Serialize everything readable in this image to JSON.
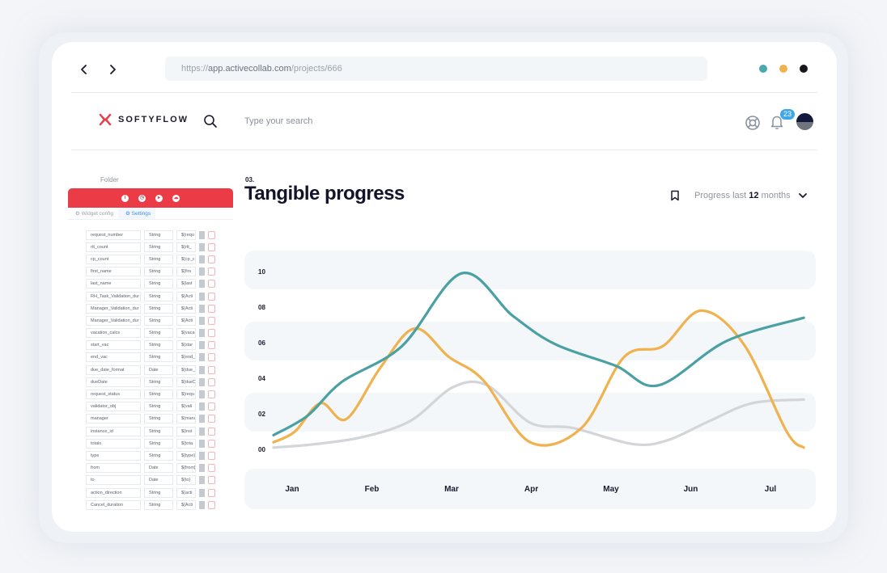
{
  "browser": {
    "back_icon": "chevron-left-icon",
    "forward_icon": "chevron-right-icon",
    "url_host": "https://",
    "url_domain": "app.activecollab.com",
    "url_path": "/projects/666",
    "dots": [
      "#4aa9ad",
      "#f0b24e",
      "#17181c"
    ]
  },
  "header": {
    "brand": "SOFTYFLOW",
    "brand_color": "#ea3b47",
    "search_placeholder": "Type your search",
    "notification_count": "23"
  },
  "panel": {
    "folder_label": "Folder",
    "tabs": [
      "Widget config",
      "Settings"
    ],
    "rows": [
      {
        "name": "request_number",
        "type": "String",
        "value": "${requ"
      },
      {
        "name": "rtt_count",
        "type": "String",
        "value": "${rtt_"
      },
      {
        "name": "cp_count",
        "type": "String",
        "value": "${cp_c"
      },
      {
        "name": "first_name",
        "type": "String",
        "value": "${firs"
      },
      {
        "name": "last_name",
        "type": "String",
        "value": "${last"
      },
      {
        "name": "RH_Task_Validation_dur",
        "type": "String",
        "value": "${Acti"
      },
      {
        "name": "Manager_Validation_dur",
        "type": "String",
        "value": "${Acti"
      },
      {
        "name": "Manager_Validation_dur",
        "type": "String",
        "value": "${Acti"
      },
      {
        "name": "vacation_calcs",
        "type": "String",
        "value": "${vaca"
      },
      {
        "name": "start_vac",
        "type": "String",
        "value": "${star"
      },
      {
        "name": "end_vac",
        "type": "String",
        "value": "${end_"
      },
      {
        "name": "due_date_format",
        "type": "Date",
        "value": "${due_"
      },
      {
        "name": "dueDate",
        "type": "String",
        "value": "${dueD"
      },
      {
        "name": "request_status",
        "type": "String",
        "value": "${requ"
      },
      {
        "name": "validator_obj",
        "type": "String",
        "value": "${vali"
      },
      {
        "name": "manager",
        "type": "String",
        "value": "${mana"
      },
      {
        "name": "instance_id",
        "type": "String",
        "value": "${inst"
      },
      {
        "name": "totals",
        "type": "String",
        "value": "${tota"
      },
      {
        "name": "type",
        "type": "String",
        "value": "${type}"
      },
      {
        "name": "from",
        "type": "Date",
        "value": "${from}"
      },
      {
        "name": "to",
        "type": "Date",
        "value": "${to}"
      },
      {
        "name": "action_direction",
        "type": "String",
        "value": "${acti"
      },
      {
        "name": "Cancel_duration",
        "type": "String",
        "value": "${Acti"
      }
    ]
  },
  "chart_header": {
    "number": "03.",
    "title": "Tangible progress",
    "progress_prefix": "Progress last",
    "progress_value": "12",
    "progress_suffix": "months"
  },
  "chart_data": {
    "type": "line",
    "categories": [
      "Jan",
      "Feb",
      "Mar",
      "Apr",
      "May",
      "Jun",
      "Jul"
    ],
    "y_ticks": [
      "00",
      "02",
      "04",
      "06",
      "08",
      "10"
    ],
    "ylim": [
      0,
      10
    ],
    "grid": "alternating horizontal bands",
    "series": [
      {
        "color": "#4aa0a2",
        "x": [
          0,
          0.4,
          0.8,
          1.5,
          2.2,
          2.8,
          3.3,
          4.0,
          4.5,
          5.3,
          6.2
        ],
        "values": [
          0.8,
          1.9,
          3.8,
          5.8,
          9.9,
          7.5,
          5.9,
          4.7,
          3.6,
          6.1,
          7.4
        ]
      },
      {
        "color": "#f0b24e",
        "x": [
          0,
          0.25,
          0.55,
          0.85,
          1.25,
          1.65,
          2.05,
          2.45,
          3.0,
          3.6,
          4.1,
          4.55,
          5.0,
          5.5,
          6.0,
          6.2
        ],
        "values": [
          0.4,
          1.0,
          2.6,
          1.7,
          4.6,
          6.8,
          5.2,
          3.9,
          0.4,
          1.2,
          5.2,
          5.8,
          7.8,
          5.9,
          1.0,
          0.1
        ]
      },
      {
        "color": "#d3d5d8",
        "x": [
          0,
          0.5,
          1.05,
          1.6,
          2.1,
          2.5,
          3.0,
          3.5,
          4.2,
          4.6,
          5.1,
          5.6,
          6.2
        ],
        "values": [
          0.1,
          0.3,
          0.7,
          1.6,
          3.5,
          3.6,
          1.5,
          1.2,
          0.3,
          0.5,
          1.6,
          2.6,
          2.8
        ]
      }
    ]
  }
}
